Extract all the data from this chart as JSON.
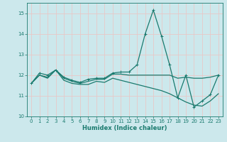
{
  "xlabel": "Humidex (Indice chaleur)",
  "bg_color": "#cce8ec",
  "grid_color": "#e8c8c8",
  "line_color": "#1a7a6e",
  "xlim": [
    -0.5,
    23.5
  ],
  "ylim": [
    10,
    15.5
  ],
  "yticks": [
    10,
    11,
    12,
    13,
    14,
    15
  ],
  "xticks": [
    0,
    1,
    2,
    3,
    4,
    5,
    6,
    7,
    8,
    9,
    10,
    11,
    12,
    13,
    14,
    15,
    16,
    17,
    18,
    19,
    20,
    21,
    22,
    23
  ],
  "series1_x": [
    0,
    1,
    2,
    3,
    4,
    5,
    6,
    7,
    8,
    9,
    10,
    11,
    12,
    13,
    14,
    15,
    16,
    17,
    18,
    19,
    20,
    21,
    22,
    23
  ],
  "series1_y": [
    11.6,
    12.1,
    12.0,
    12.25,
    11.9,
    11.75,
    11.65,
    11.8,
    11.85,
    11.85,
    12.1,
    12.15,
    12.15,
    12.5,
    14.0,
    15.15,
    13.9,
    12.5,
    10.9,
    12.0,
    10.45,
    10.75,
    11.05,
    12.0
  ],
  "series2_x": [
    0,
    1,
    2,
    3,
    4,
    5,
    6,
    7,
    8,
    9,
    10,
    11,
    12,
    13,
    14,
    15,
    16,
    17,
    18,
    19,
    20,
    21,
    22,
    23
  ],
  "series2_y": [
    11.6,
    12.0,
    11.9,
    12.25,
    11.85,
    11.7,
    11.6,
    11.7,
    11.8,
    11.8,
    12.05,
    12.05,
    12.0,
    12.0,
    12.0,
    12.0,
    12.0,
    12.0,
    11.85,
    11.9,
    11.85,
    11.85,
    11.9,
    12.0
  ],
  "series3_x": [
    0,
    1,
    2,
    3,
    4,
    5,
    6,
    7,
    8,
    9,
    10,
    11,
    12,
    13,
    14,
    15,
    16,
    17,
    18,
    19,
    20,
    21,
    22,
    23
  ],
  "series3_y": [
    11.6,
    12.0,
    11.85,
    12.25,
    11.75,
    11.6,
    11.55,
    11.55,
    11.7,
    11.65,
    11.85,
    11.75,
    11.65,
    11.55,
    11.45,
    11.35,
    11.25,
    11.1,
    10.9,
    10.7,
    10.55,
    10.5,
    10.75,
    11.1
  ],
  "xlabel_fontsize": 6.0,
  "tick_fontsize": 5.0
}
